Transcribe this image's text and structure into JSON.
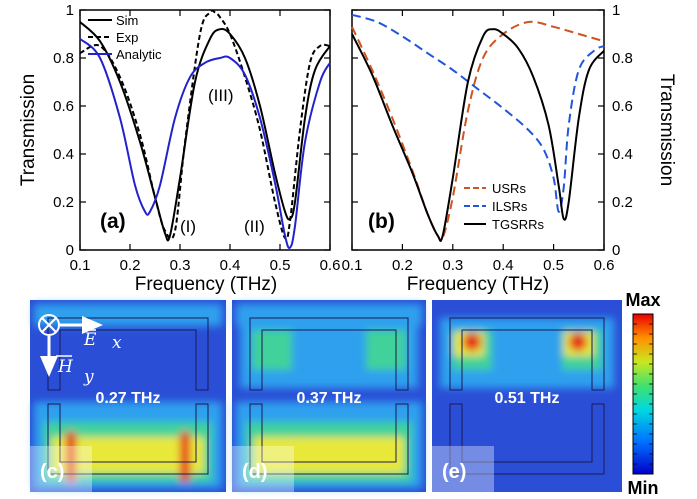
{
  "chart_data": [
    {
      "type": "line",
      "panel": "(a)",
      "xlabel": "Frequency (THz)",
      "ylabel": "Transmission",
      "xlim": [
        0.1,
        0.6
      ],
      "ylim": [
        0,
        1
      ],
      "xticks": [
        "0.1",
        "0.2",
        "0.3",
        "0.4",
        "0.5",
        "0.6"
      ],
      "yticks": [
        "0",
        "0.2",
        "0.4",
        "0.6",
        "0.8",
        "1"
      ],
      "legend_position": "top-left",
      "annotations": [
        "(I)",
        "(II)",
        "(III)"
      ],
      "series": [
        {
          "name": "Sim",
          "color": "#000000",
          "style": "solid",
          "x": [
            0.1,
            0.14,
            0.18,
            0.22,
            0.25,
            0.27,
            0.28,
            0.3,
            0.33,
            0.36,
            0.38,
            0.4,
            0.43,
            0.46,
            0.49,
            0.51,
            0.52,
            0.53,
            0.55,
            0.57,
            0.6
          ],
          "y": [
            0.95,
            0.87,
            0.7,
            0.45,
            0.22,
            0.07,
            0.06,
            0.3,
            0.7,
            0.88,
            0.92,
            0.9,
            0.8,
            0.6,
            0.32,
            0.16,
            0.13,
            0.2,
            0.55,
            0.75,
            0.85
          ]
        },
        {
          "name": "Exp",
          "color": "#000000",
          "style": "dashed",
          "x": [
            0.1,
            0.14,
            0.18,
            0.22,
            0.25,
            0.27,
            0.29,
            0.31,
            0.34,
            0.36,
            0.37,
            0.38,
            0.4,
            0.43,
            0.46,
            0.49,
            0.51,
            0.52,
            0.54,
            0.56,
            0.58,
            0.6
          ],
          "y": [
            0.82,
            0.85,
            0.72,
            0.48,
            0.22,
            0.08,
            0.08,
            0.45,
            0.9,
            0.99,
            0.99,
            0.97,
            0.9,
            0.72,
            0.5,
            0.2,
            0.05,
            0.12,
            0.5,
            0.78,
            0.85,
            0.85
          ]
        },
        {
          "name": "Analytic",
          "color": "#2222cc",
          "style": "solid",
          "x": [
            0.1,
            0.14,
            0.18,
            0.21,
            0.23,
            0.24,
            0.26,
            0.29,
            0.32,
            0.35,
            0.38,
            0.4,
            0.43,
            0.46,
            0.49,
            0.51,
            0.52,
            0.53,
            0.55,
            0.58,
            0.6
          ],
          "y": [
            0.88,
            0.8,
            0.55,
            0.27,
            0.16,
            0.16,
            0.27,
            0.55,
            0.72,
            0.78,
            0.8,
            0.8,
            0.73,
            0.55,
            0.28,
            0.06,
            0.01,
            0.1,
            0.45,
            0.7,
            0.78
          ]
        }
      ]
    },
    {
      "type": "line",
      "panel": "(b)",
      "xlabel": "Frequency (THz)",
      "ylabel": "Transmission",
      "xlim": [
        0.1,
        0.6
      ],
      "ylim": [
        0,
        1
      ],
      "xticks": [
        "0.1",
        "0.2",
        "0.3",
        "0.4",
        "0.5",
        "0.6"
      ],
      "yticks": [
        "0",
        "0.2",
        "0.4",
        "0.6",
        "0.8",
        "1"
      ],
      "legend_position": "bottom-right",
      "series": [
        {
          "name": "USRs",
          "color": "#cc5522",
          "style": "dashed",
          "x": [
            0.1,
            0.14,
            0.18,
            0.22,
            0.25,
            0.27,
            0.28,
            0.3,
            0.33,
            0.36,
            0.4,
            0.45,
            0.5,
            0.55,
            0.6
          ],
          "y": [
            0.93,
            0.75,
            0.55,
            0.33,
            0.15,
            0.06,
            0.05,
            0.22,
            0.58,
            0.8,
            0.9,
            0.95,
            0.93,
            0.9,
            0.87
          ]
        },
        {
          "name": "ILSRs",
          "color": "#2255dd",
          "style": "dashed",
          "x": [
            0.1,
            0.15,
            0.2,
            0.25,
            0.3,
            0.35,
            0.4,
            0.45,
            0.48,
            0.5,
            0.51,
            0.52,
            0.53,
            0.55,
            0.58,
            0.6
          ],
          "y": [
            0.98,
            0.95,
            0.89,
            0.82,
            0.75,
            0.67,
            0.59,
            0.5,
            0.42,
            0.3,
            0.16,
            0.26,
            0.52,
            0.75,
            0.83,
            0.85
          ]
        },
        {
          "name": "TGSRRs",
          "color": "#000000",
          "style": "solid",
          "x": [
            0.1,
            0.14,
            0.18,
            0.22,
            0.25,
            0.27,
            0.28,
            0.3,
            0.33,
            0.36,
            0.38,
            0.4,
            0.43,
            0.46,
            0.49,
            0.51,
            0.52,
            0.53,
            0.55,
            0.57,
            0.6
          ],
          "y": [
            0.9,
            0.73,
            0.52,
            0.32,
            0.15,
            0.06,
            0.06,
            0.3,
            0.7,
            0.89,
            0.92,
            0.9,
            0.84,
            0.72,
            0.52,
            0.27,
            0.13,
            0.2,
            0.55,
            0.75,
            0.83
          ]
        }
      ]
    }
  ],
  "maps": [
    {
      "label": "(c)",
      "freq": "0.27 THz",
      "mode": "bottom"
    },
    {
      "label": "(d)",
      "freq": "0.37 THz",
      "mode": "mixed"
    },
    {
      "label": "(e)",
      "freq": "0.51 THz",
      "mode": "top"
    }
  ],
  "field_labels": {
    "e_letter": "E",
    "e_sub": "x",
    "h_letter": "H",
    "h_sub": "y"
  },
  "colorbar": {
    "max_label": "Max",
    "min_label": "Min"
  },
  "colors": {
    "map_bg": "#2a4fd6",
    "field_low": "#2fa0ee",
    "field_mid": "#3fd29a",
    "field_high": "#e8e83a",
    "field_peak": "#e52a1a"
  }
}
